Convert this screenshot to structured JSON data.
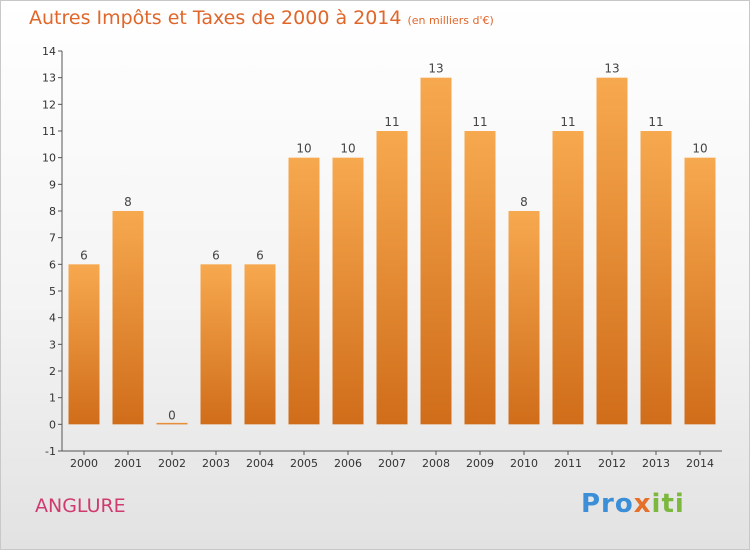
{
  "title": "Autres Impôts et Taxes de 2000 à 2014",
  "unit_note": "(en milliers d'€)",
  "commune": "ANGLURE",
  "logo": {
    "part1": "Pro",
    "part2": "x",
    "part3": "iti"
  },
  "colors": {
    "bar_top": "#f7a94f",
    "bar_bottom": "#d06d1a",
    "title": "#e0662a",
    "commune": "#d03a6e"
  },
  "chart_data": {
    "type": "bar",
    "categories": [
      "2000",
      "2001",
      "2002",
      "2003",
      "2004",
      "2005",
      "2006",
      "2007",
      "2008",
      "2009",
      "2010",
      "2011",
      "2012",
      "2013",
      "2014"
    ],
    "values": [
      6,
      8,
      0,
      6,
      6,
      10,
      10,
      11,
      13,
      11,
      8,
      11,
      13,
      11,
      10
    ],
    "data_labels": [
      "6",
      "8",
      "0",
      "6",
      "6",
      "10",
      "10",
      "11",
      "13",
      "11",
      "8",
      "11",
      "13",
      "11",
      "10"
    ],
    "yticks": [
      "-1",
      "0",
      "1",
      "2",
      "3",
      "4",
      "5",
      "6",
      "7",
      "8",
      "9",
      "10",
      "11",
      "12",
      "13",
      "14"
    ],
    "ylim": [
      -1,
      14
    ],
    "grid": false,
    "title": "Autres Impôts et Taxes de 2000 à 2014",
    "xlabel": "",
    "ylabel": ""
  }
}
